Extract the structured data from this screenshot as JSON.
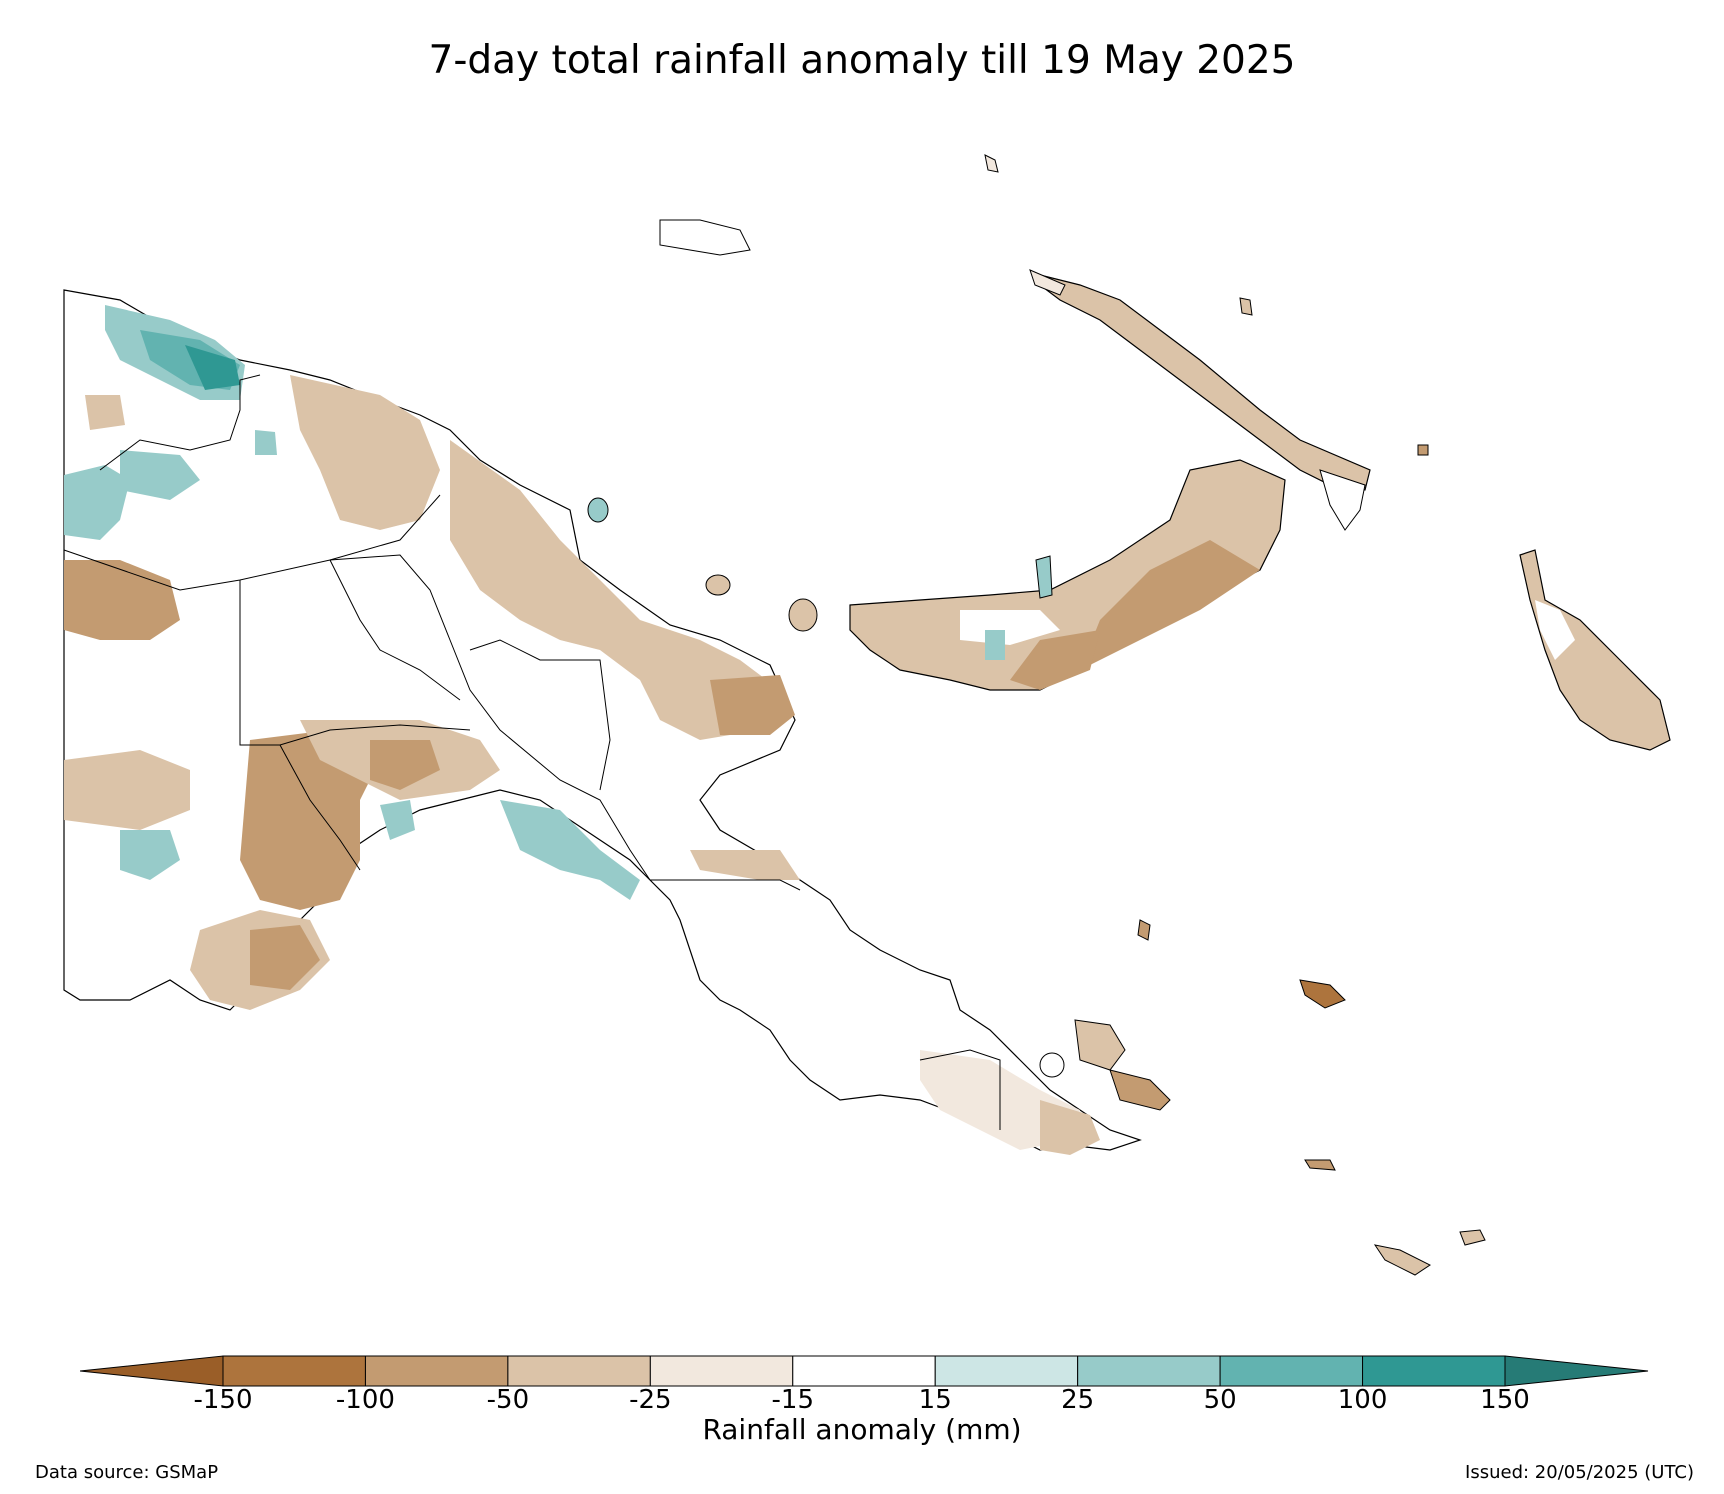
{
  "title": "7-day total rainfall anomaly till 19 May 2025",
  "colorbar": {
    "label": "Rainfall anomaly (mm)",
    "ticks": [
      "-150",
      "-100",
      "-50",
      "-25",
      "-15",
      "15",
      "25",
      "50",
      "100",
      "150"
    ],
    "colors": [
      "#9a5e28",
      "#ad743d",
      "#c39b71",
      "#dbc3a8",
      "#f2e8de",
      "#ffffff",
      "#cde6e5",
      "#97cbc9",
      "#62b3b0",
      "#2f9893",
      "#267b76"
    ]
  },
  "footer": {
    "source": "Data source: GSMaP",
    "issued": "Issued: 20/05/2025 (UTC)"
  },
  "palette": {
    "coast": "#000000",
    "dry_strong": "#ad743d",
    "dry_moderate": "#c39b71",
    "dry_light": "#dbc3a8",
    "dry_slight": "#f2e8de",
    "wet_slight": "#cde6e5",
    "wet_moderate": "#97cbc9",
    "wet_strong": "#62b3b0",
    "wet_extreme": "#2f9893"
  }
}
